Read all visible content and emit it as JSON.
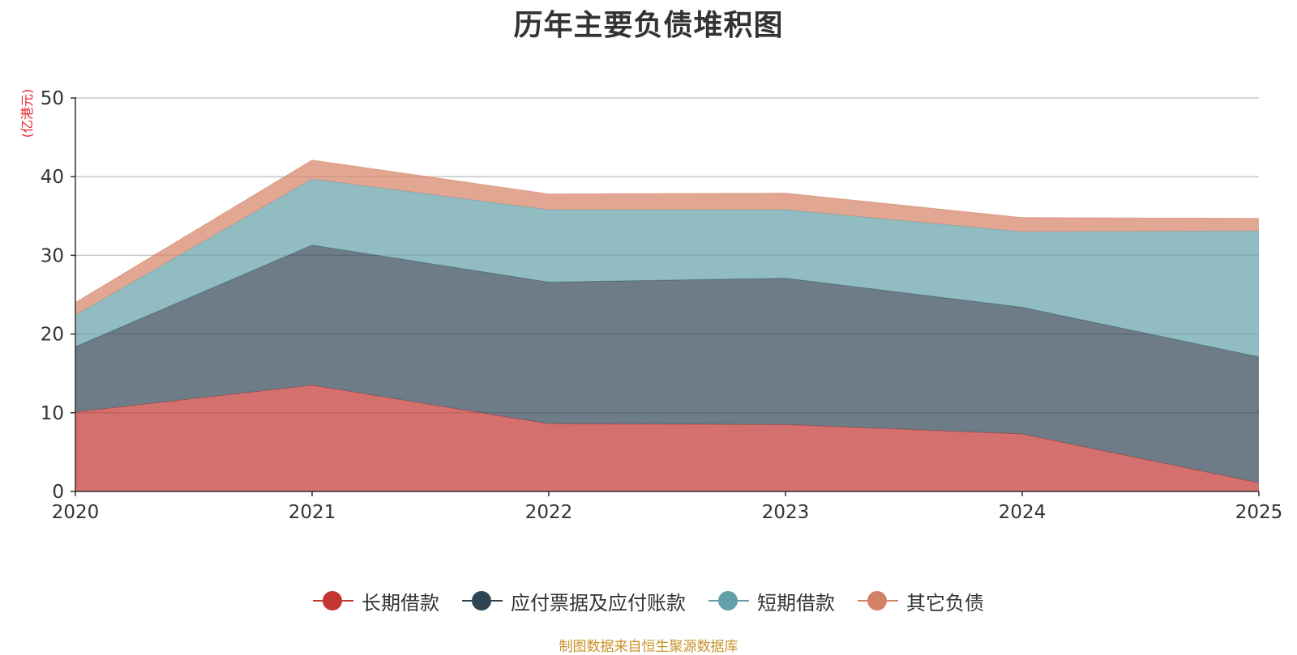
{
  "chart_data": {
    "type": "area",
    "stacked": true,
    "title": "历年主要负债堆积图",
    "ylabel": "(亿港元)",
    "xlabel": "",
    "x": [
      "2020",
      "2021",
      "2022",
      "2023",
      "2024",
      "2025"
    ],
    "ylim": [
      0,
      50
    ],
    "yticks": [
      0,
      10,
      20,
      30,
      40,
      50
    ],
    "grid": true,
    "legend_position": "bottom",
    "series": [
      {
        "name": "长期借款",
        "values": [
          10.1,
          13.5,
          8.6,
          8.5,
          7.3,
          1.1
        ],
        "color": "#c23531"
      },
      {
        "name": "应付票据及应付账款",
        "values": [
          8.3,
          17.8,
          18.0,
          18.6,
          16.1,
          16.0
        ],
        "color": "#2f4554"
      },
      {
        "name": "短期借款",
        "values": [
          4.0,
          8.4,
          9.2,
          8.7,
          9.6,
          16.0
        ],
        "color": "#61a0a8"
      },
      {
        "name": "其它负债",
        "values": [
          1.6,
          2.4,
          2.0,
          2.1,
          1.8,
          1.6
        ],
        "color": "#d48265"
      }
    ]
  },
  "footer": "制图数据来自恒生聚源数据库"
}
